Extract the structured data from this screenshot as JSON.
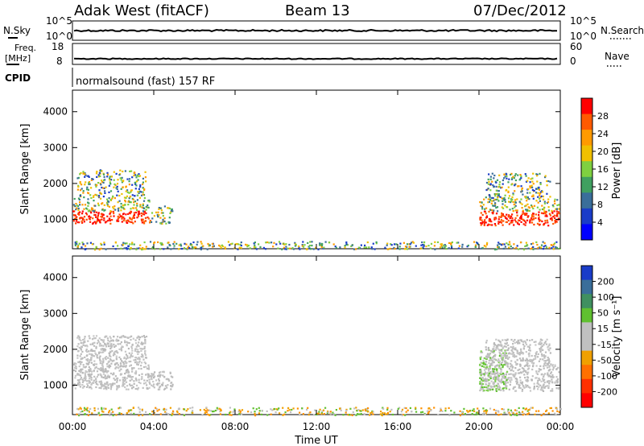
{
  "header": {
    "site": "Adak West (fitACF)",
    "beam": "Beam 13",
    "date": "07/Dec/2012"
  },
  "status_panels": {
    "nsky_label": "N.Sky",
    "nsearch_label": "N.Search",
    "nsky_ticks": [
      "10^5",
      "10^0"
    ],
    "nsearch_ticks": [
      "10^5",
      "10^0"
    ],
    "freq_label": "Freq.",
    "freq_unit": "[MHz]",
    "freq_ticks": [
      "18",
      "8"
    ],
    "nave_label": "Nave",
    "nave_ticks": [
      "60",
      "0"
    ],
    "cpid_label": "CPID",
    "cpid_text": "normalsound (fast) 157 RF"
  },
  "colorbars": {
    "power": {
      "label": "Power [dB]",
      "ticks": [
        "28",
        "24",
        "20",
        "16",
        "12",
        "8",
        "4"
      ],
      "colors": [
        "#ff0000",
        "#ff5a00",
        "#ff9a00",
        "#f0c000",
        "#7fd040",
        "#40a060",
        "#3a6e9a",
        "#1a3cc8",
        "#0000ff"
      ]
    },
    "velocity": {
      "label": "Velocity [m s⁻¹]",
      "ticks": [
        "200",
        "100",
        "50",
        "15",
        "-15",
        "-50",
        "-100",
        "-200"
      ],
      "colors": [
        "#1a3cc8",
        "#3a6e9a",
        "#409060",
        "#60c030",
        "#c0c0c0",
        "#c0c0c0",
        "#f0a000",
        "#ff7000",
        "#ff3000",
        "#ff0000"
      ]
    }
  },
  "chart_data": [
    {
      "type": "heatmap",
      "title": "Power",
      "ylabel": "Slant Range [km]",
      "xlabel": "Time UT",
      "x_ticks": [
        "00:00",
        "04:00",
        "08:00",
        "12:00",
        "16:00",
        "20:00",
        "00:00"
      ],
      "y_ticks": [
        1000,
        2000,
        3000,
        4000
      ],
      "xlim_hours": [
        0,
        24
      ],
      "ylim_km": [
        180,
        4600
      ],
      "regions": [
        {
          "t0": 0.0,
          "t1": 3.8,
          "r0": 900,
          "r1": 1250,
          "level": "high"
        },
        {
          "t0": 0.0,
          "t1": 3.8,
          "r0": 1250,
          "r1": 1650,
          "level": "mid"
        },
        {
          "t0": 0.2,
          "t1": 3.6,
          "r0": 1650,
          "r1": 2400,
          "level": "low"
        },
        {
          "t0": 3.8,
          "t1": 4.9,
          "r0": 900,
          "r1": 1400,
          "level": "mid"
        },
        {
          "t0": 20.0,
          "t1": 23.9,
          "r0": 850,
          "r1": 1250,
          "level": "high"
        },
        {
          "t0": 20.0,
          "t1": 23.9,
          "r0": 1250,
          "r1": 1600,
          "level": "mid"
        },
        {
          "t0": 20.3,
          "t1": 23.5,
          "r0": 1600,
          "r1": 2300,
          "level": "low"
        },
        {
          "t0": 0.0,
          "t1": 24.0,
          "r0": 180,
          "r1": 400,
          "level": "low"
        }
      ]
    },
    {
      "type": "heatmap",
      "title": "Velocity",
      "ylabel": "Slant Range [km]",
      "xlabel": "Time UT",
      "x_ticks": [
        "00:00",
        "04:00",
        "08:00",
        "12:00",
        "16:00",
        "20:00",
        "00:00"
      ],
      "y_ticks": [
        1000,
        2000,
        3000,
        4000
      ],
      "xlim_hours": [
        0,
        24
      ],
      "ylim_km": [
        180,
        4600
      ],
      "regions": [
        {
          "t0": 0.0,
          "t1": 3.8,
          "r0": 900,
          "r1": 1650,
          "level": "grey"
        },
        {
          "t0": 0.2,
          "t1": 3.6,
          "r0": 1650,
          "r1": 2400,
          "level": "grey"
        },
        {
          "t0": 3.8,
          "t1": 4.9,
          "r0": 900,
          "r1": 1400,
          "level": "grey"
        },
        {
          "t0": 20.0,
          "t1": 23.9,
          "r0": 850,
          "r1": 1600,
          "level": "grey"
        },
        {
          "t0": 20.0,
          "t1": 21.4,
          "r0": 850,
          "r1": 2000,
          "level": "green"
        },
        {
          "t0": 20.3,
          "t1": 23.5,
          "r0": 1600,
          "r1": 2300,
          "level": "grey"
        },
        {
          "t0": 0.0,
          "t1": 24.0,
          "r0": 180,
          "r1": 400,
          "level": "orange"
        }
      ]
    }
  ]
}
